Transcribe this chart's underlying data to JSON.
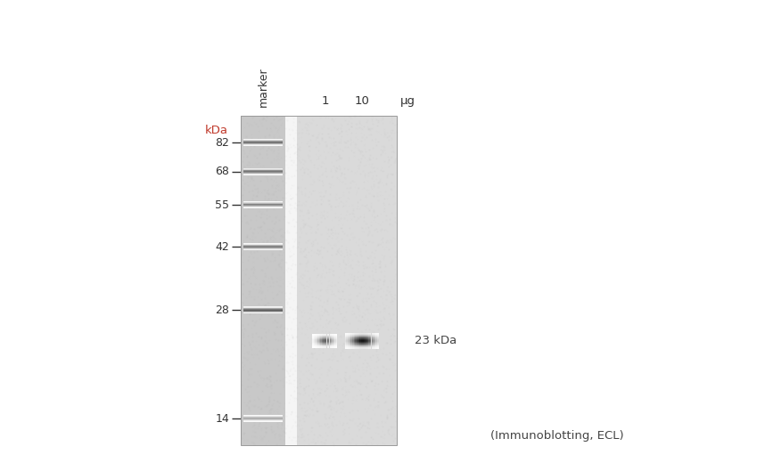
{
  "fig_width": 8.58,
  "fig_height": 5.29,
  "bg_color": "#ffffff",
  "marker_label": "marker",
  "lane_labels": [
    "1",
    "10",
    "μg"
  ],
  "kda_label": "kDa",
  "kda_color": "#c0392b",
  "marker_bands_kda": [
    82,
    68,
    55,
    42,
    28,
    14
  ],
  "annotation_23kda": "23 kDa",
  "annotation_text": "(Immunoblotting, ECL)",
  "text_color": "#444444"
}
